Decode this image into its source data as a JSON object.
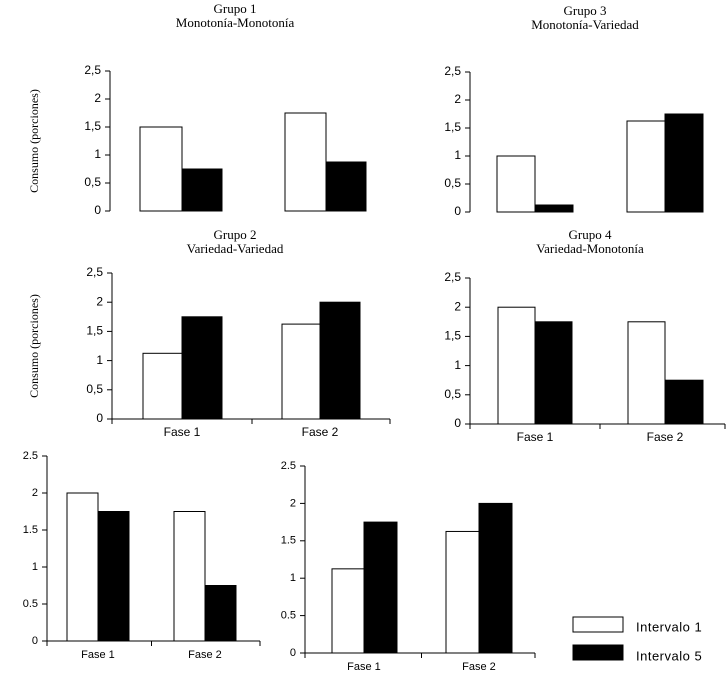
{
  "legend": [
    {
      "name": "Intervalo 1",
      "color": "#ffffff"
    },
    {
      "name": "Intervalo 5",
      "color": "#000000"
    }
  ],
  "chart_data": [
    {
      "type": "bar",
      "title": "Grupo 1",
      "subtitle": "Monotonía-Monotonía",
      "y_label": "Consumo (porciones)",
      "categories": [
        null,
        null
      ],
      "series": [
        {
          "values": [
            1.5,
            1.75
          ]
        },
        {
          "values": [
            0.75,
            0.875
          ]
        }
      ],
      "ylim": [
        0,
        2.5
      ],
      "yticks": [
        0,
        {
          "value": 0.5,
          "label": "0,5"
        },
        1,
        {
          "value": 1.5,
          "label": "1,5"
        },
        2,
        {
          "value": 2.5,
          "label": "2,5"
        }
      ]
    },
    {
      "type": "bar",
      "title": "Grupo 3",
      "subtitle": "Monotonía-Variedad",
      "categories": [
        null,
        null
      ],
      "series": [
        {
          "values": [
            1.0,
            1.625
          ]
        },
        {
          "values": [
            0.125,
            1.75
          ]
        }
      ],
      "ylim": [
        0,
        2.5
      ],
      "yticks": [
        0,
        {
          "value": 0.5,
          "label": "0,5"
        },
        1,
        {
          "value": 1.5,
          "label": "1,5"
        },
        2,
        {
          "value": 2.5,
          "label": "2,5"
        }
      ]
    },
    {
      "type": "bar",
      "title": "Grupo 2",
      "subtitle": "Variedad-Variedad",
      "y_label": "Consumo (porciones)",
      "categories": [
        "Fase 1",
        "Fase 2"
      ],
      "series": [
        {
          "values": [
            1.125,
            1.625
          ]
        },
        {
          "values": [
            1.75,
            2.0
          ]
        }
      ],
      "ylim": [
        0,
        2.5
      ],
      "yticks": [
        0,
        {
          "value": 0.5,
          "label": "0,5"
        },
        1,
        {
          "value": 1.5,
          "label": "1,5"
        },
        2,
        {
          "value": 2.5,
          "label": "2,5"
        }
      ]
    },
    {
      "type": "bar",
      "title": "Grupo 4",
      "subtitle": "Variedad-Monotonía",
      "categories": [
        "Fase 1",
        "Fase 2"
      ],
      "series": [
        {
          "values": [
            2.0,
            1.75
          ]
        },
        {
          "values": [
            1.75,
            0.75
          ]
        }
      ],
      "ylim": [
        0,
        2.5
      ],
      "yticks": [
        0,
        {
          "value": 0.5,
          "label": "0,5"
        },
        1,
        {
          "value": 1.5,
          "label": "1,5"
        },
        2,
        {
          "value": 2.5,
          "label": "2,5"
        }
      ]
    },
    {
      "type": "bar",
      "categories": [
        "Fase 1",
        "Fase 2"
      ],
      "series": [
        {
          "values": [
            2.0,
            1.75
          ]
        },
        {
          "values": [
            1.75,
            0.75
          ]
        }
      ],
      "ylim": [
        0,
        2.5
      ],
      "yticks": [
        0,
        0.5,
        1,
        1.5,
        2,
        2.5
      ]
    },
    {
      "type": "bar",
      "categories": [
        "Fase 1",
        "Fase 2"
      ],
      "series": [
        {
          "values": [
            1.125,
            1.625
          ]
        },
        {
          "values": [
            1.75,
            2.0
          ]
        }
      ],
      "ylim": [
        0,
        2.5
      ],
      "yticks": [
        0,
        0.5,
        1,
        1.5,
        2,
        2.5
      ]
    }
  ]
}
